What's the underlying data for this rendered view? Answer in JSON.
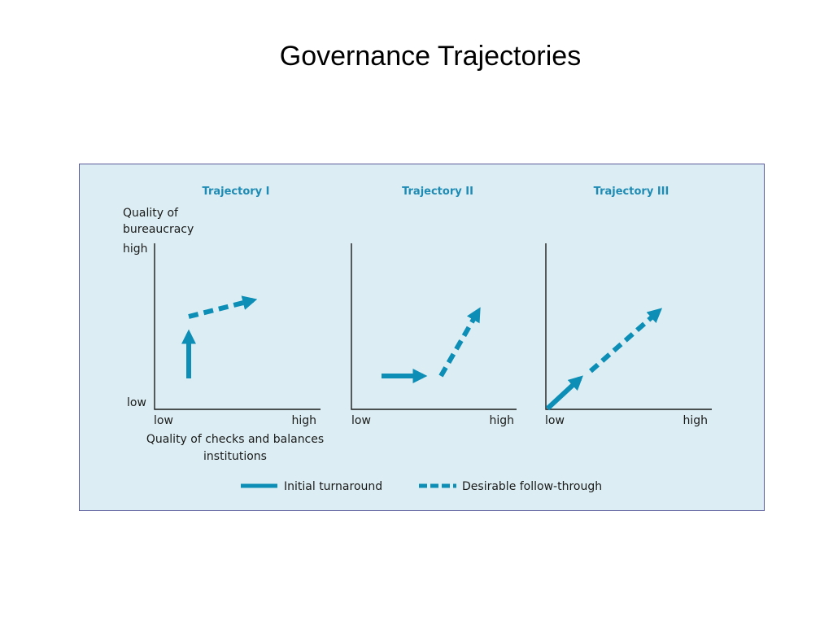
{
  "slide": {
    "title": "Governance Trajectories"
  },
  "figure": {
    "colors": {
      "arrow": "#0d8eb6",
      "axis": "#1a1a1a",
      "title": "#1e8bb4",
      "panel_bg": "#dceef3",
      "panel_border": "#5a5a9a"
    },
    "y_axis_title_line1": "Quality of",
    "y_axis_title_line2": "bureaucracy",
    "y_high": "high",
    "y_low": "low",
    "x_low": "low",
    "x_high": "high",
    "x_axis_title_line1": "Quality of checks and balances",
    "x_axis_title_line2": "institutions",
    "panels": [
      {
        "title": "Trajectory I"
      },
      {
        "title": "Trajectory II"
      },
      {
        "title": "Trajectory III"
      }
    ],
    "legend": {
      "solid_label": "Initial turnaround",
      "dashed_label": "Desirable follow-through"
    }
  }
}
